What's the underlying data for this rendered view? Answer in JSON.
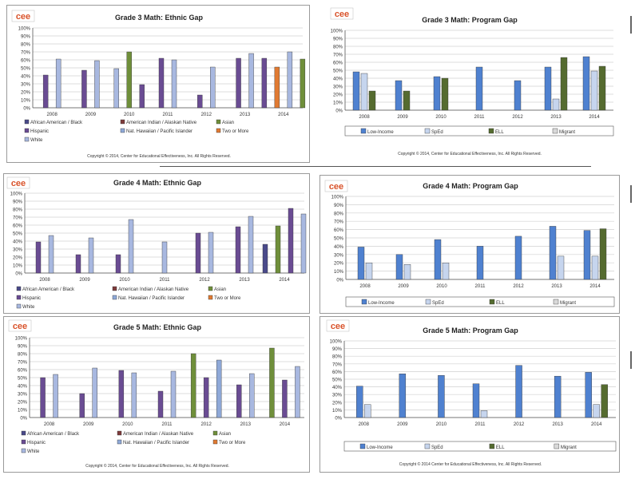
{
  "logo_text": "cee",
  "charts": [
    {
      "chart_data": {
        "type": "bar",
        "title": "Grade 3 Math: Ethnic Gap",
        "categories": [
          "2008",
          "2009",
          "2010",
          "2011",
          "2012",
          "2013",
          "2014"
        ],
        "yticks": [
          "100%",
          "90%",
          "80%",
          "70%",
          "60%",
          "50%",
          "40%",
          "30%",
          "20%",
          "10%",
          "0%"
        ],
        "ylim": [
          0,
          100
        ],
        "series": [
          {
            "name": "African American / Black",
            "values": [
              null,
              null,
              null,
              null,
              null,
              null,
              null
            ]
          },
          {
            "name": "American Indian / Alaskan Native",
            "values": [
              null,
              null,
              null,
              null,
              null,
              null,
              null
            ]
          },
          {
            "name": "Asian",
            "values": [
              null,
              null,
              null,
              null,
              null,
              null,
              null
            ]
          },
          {
            "name": "Hispanic",
            "values": [
              41,
              47,
              null,
              62,
              16,
              62,
              62
            ]
          },
          {
            "name": "Nat. Hawaiian / Pacific Islander",
            "values": [
              null,
              null,
              null,
              null,
              null,
              null,
              null
            ]
          },
          {
            "name": "Two or More",
            "values": [
              null,
              null,
              null,
              null,
              null,
              null,
              51
            ]
          },
          {
            "name": "White",
            "values": [
              61,
              59,
              49,
              60,
              51,
              68,
              70
            ]
          }
        ],
        "extra": [
          {
            "series": "Asian",
            "values": [
              null,
              null,
              70,
              null,
              null,
              null,
              61
            ]
          },
          {
            "series": "Hispanic2",
            "values": [
              null,
              null,
              29,
              null,
              null,
              null,
              null
            ]
          }
        ],
        "footer": "Copyright © 2014, Center for Educational Effectiveness, Inc. All Rights Reserved."
      }
    },
    {
      "chart_data": {
        "type": "bar",
        "title": "Grade 3 Math: Program Gap",
        "categories": [
          "2008",
          "2009",
          "2010",
          "2011",
          "2012",
          "2013",
          "2014"
        ],
        "yticks": [
          "100%",
          "90%",
          "80%",
          "70%",
          "60%",
          "50%",
          "40%",
          "30%",
          "20%",
          "10%",
          "0%"
        ],
        "ylim": [
          0,
          100
        ],
        "series": [
          {
            "name": "Low-Income",
            "values": [
              48,
              37,
              42,
              54,
              37,
              54,
              67
            ]
          },
          {
            "name": "SpEd",
            "values": [
              46,
              null,
              null,
              null,
              null,
              14,
              49
            ]
          },
          {
            "name": "ELL",
            "values": [
              24,
              24,
              40,
              null,
              null,
              66,
              55
            ]
          },
          {
            "name": "Migrant",
            "values": [
              null,
              null,
              null,
              null,
              null,
              null,
              null
            ]
          }
        ],
        "footer": "Copyright © 2014, Center for Educational Effectiveness, Inc. All Rights Reserved."
      }
    },
    {
      "chart_data": {
        "type": "bar",
        "title": "Grade 4 Math: Ethnic Gap",
        "categories": [
          "2008",
          "2009",
          "2010",
          "2011",
          "2012",
          "2013",
          "2014"
        ],
        "yticks": [
          "100%",
          "90%",
          "80%",
          "70%",
          "60%",
          "50%",
          "40%",
          "30%",
          "20%",
          "10%",
          "0%"
        ],
        "ylim": [
          0,
          100
        ],
        "series": [
          {
            "name": "African American / Black",
            "values": [
              null,
              null,
              null,
              null,
              null,
              null,
              36
            ]
          },
          {
            "name": "American Indian / Alaskan Native",
            "values": [
              null,
              null,
              null,
              null,
              null,
              null,
              null
            ]
          },
          {
            "name": "Asian",
            "values": [
              null,
              null,
              null,
              null,
              null,
              null,
              59
            ]
          },
          {
            "name": "Hispanic",
            "values": [
              39,
              23,
              23,
              null,
              50,
              58,
              81
            ]
          },
          {
            "name": "Nat. Hawaiian / Pacific Islander",
            "values": [
              null,
              null,
              null,
              null,
              null,
              null,
              null
            ]
          },
          {
            "name": "Two or More",
            "values": [
              null,
              null,
              null,
              null,
              null,
              null,
              null
            ]
          },
          {
            "name": "White",
            "values": [
              47,
              44,
              67,
              39,
              51,
              71,
              74
            ]
          }
        ],
        "footer": ""
      }
    },
    {
      "chart_data": {
        "type": "bar",
        "title": "Grade 4 Math: Program Gap",
        "categories": [
          "2008",
          "2009",
          "2010",
          "2011",
          "2012",
          "2013",
          "2014"
        ],
        "yticks": [
          "100%",
          "90%",
          "80%",
          "70%",
          "60%",
          "50%",
          "40%",
          "30%",
          "20%",
          "10%",
          "0%"
        ],
        "ylim": [
          0,
          100
        ],
        "series": [
          {
            "name": "Low-Income",
            "values": [
              39,
              30,
              48,
              40,
              52,
              64,
              59
            ]
          },
          {
            "name": "SpEd",
            "values": [
              20,
              18,
              20,
              null,
              null,
              28,
              28
            ]
          },
          {
            "name": "ELL",
            "values": [
              null,
              null,
              null,
              null,
              null,
              null,
              61
            ]
          },
          {
            "name": "Migrant",
            "values": [
              null,
              null,
              null,
              null,
              null,
              null,
              null
            ]
          }
        ],
        "footer": ""
      }
    },
    {
      "chart_data": {
        "type": "bar",
        "title": "Grade 5 Math: Ethnic Gap",
        "categories": [
          "2008",
          "2009",
          "2010",
          "2011",
          "2012",
          "2013",
          "2014"
        ],
        "yticks": [
          "100%",
          "90%",
          "80%",
          "70%",
          "60%",
          "50%",
          "40%",
          "30%",
          "20%",
          "10%",
          "0%"
        ],
        "ylim": [
          0,
          100
        ],
        "series": [
          {
            "name": "African American / Black",
            "values": [
              null,
              null,
              null,
              null,
              null,
              null,
              null
            ]
          },
          {
            "name": "American Indian / Alaskan Native",
            "values": [
              null,
              null,
              null,
              null,
              null,
              null,
              null
            ]
          },
          {
            "name": "Asian",
            "values": [
              null,
              null,
              null,
              null,
              80,
              null,
              87
            ]
          },
          {
            "name": "Hispanic",
            "values": [
              50,
              30,
              59,
              33,
              50,
              41,
              47
            ]
          },
          {
            "name": "Nat. Hawaiian / Pacific Islander",
            "values": [
              null,
              null,
              null,
              null,
              72,
              null,
              null
            ]
          },
          {
            "name": "Two or More",
            "values": [
              null,
              null,
              null,
              null,
              null,
              null,
              null
            ]
          },
          {
            "name": "White",
            "values": [
              54,
              62,
              56,
              58,
              null,
              55,
              64
            ]
          }
        ],
        "footer": "Copyright © 2014, Center for Educational Effectiveness, Inc. All Rights Reserved."
      }
    },
    {
      "chart_data": {
        "type": "bar",
        "title": "Grade 5 Math: Program Gap",
        "categories": [
          "2008",
          "2009",
          "2010",
          "2011",
          "2012",
          "2013",
          "2014"
        ],
        "yticks": [
          "100%",
          "90%",
          "80%",
          "70%",
          "60%",
          "50%",
          "40%",
          "30%",
          "20%",
          "10%",
          "0%"
        ],
        "ylim": [
          0,
          100
        ],
        "series": [
          {
            "name": "Low-Income",
            "values": [
              41,
              57,
              55,
              44,
              68,
              54,
              59
            ]
          },
          {
            "name": "SpEd",
            "values": [
              17,
              null,
              null,
              9,
              null,
              null,
              17
            ]
          },
          {
            "name": "ELL",
            "values": [
              null,
              null,
              null,
              null,
              null,
              null,
              43
            ]
          },
          {
            "name": "Migrant",
            "values": [
              null,
              null,
              null,
              null,
              null,
              null,
              null
            ]
          }
        ],
        "footer": "Copyright © 2014 Center for Educational Effectiveness, Inc. All Rights Reserved."
      }
    }
  ],
  "colors": {
    "African American / Black": "#4a4a8a",
    "American Indian / Alaskan Native": "#7e3b3b",
    "Asian": "#6f8f3a",
    "Hispanic": "#6a4c93",
    "Hispanic2": "#6a4c93",
    "Nat. Hawaiian / Pacific Islander": "#8fa9d8",
    "Two or More": "#e07a32",
    "White": "#a8b8e0",
    "Low-Income": "#4f81d0",
    "SpEd": "#c6d5ee",
    "ELL": "#556b2f",
    "Migrant": "#d9d9d9"
  }
}
